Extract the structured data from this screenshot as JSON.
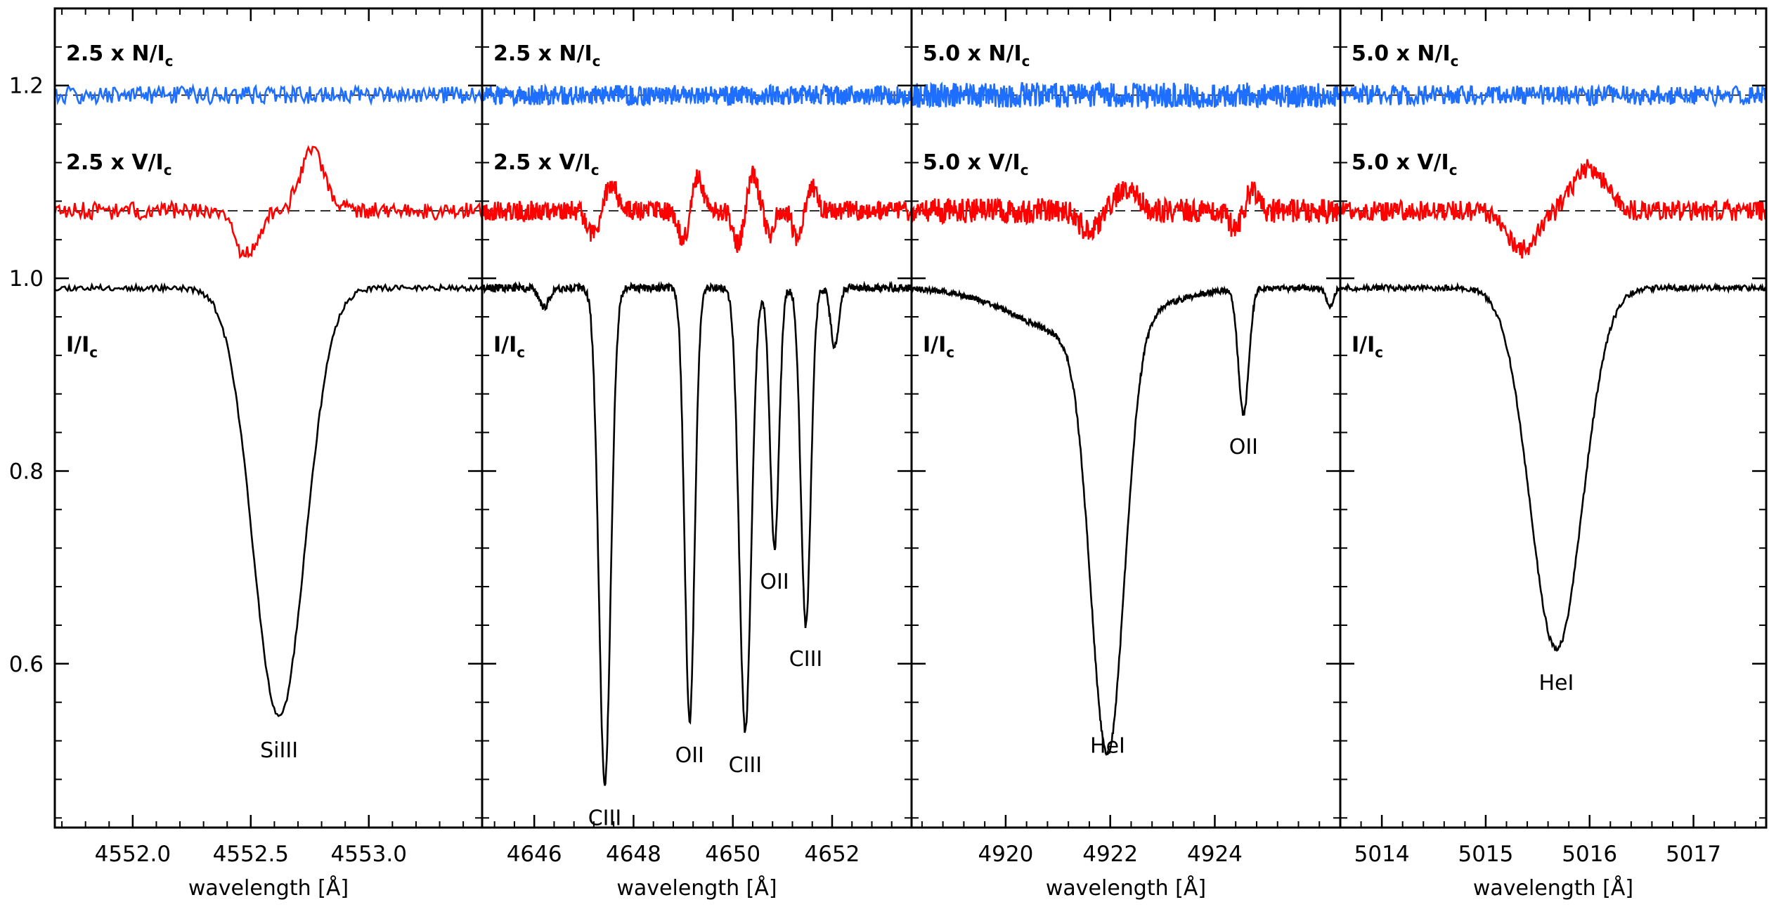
{
  "chart_data": {
    "type": "line",
    "shared_y_axis": {
      "range": [
        0.43,
        1.28
      ],
      "ticks": [
        0.6,
        0.8,
        1.0,
        1.2
      ],
      "tick_labels": [
        "0.6",
        "0.8",
        "1.0",
        "1.2"
      ]
    },
    "colors": {
      "stokes_i": "#000000",
      "stokes_v": "#ff0000",
      "null_n": "#1e6fff",
      "reference": "#000000"
    },
    "offsets": {
      "I": 0.0,
      "V": 1.07,
      "N": 1.19
    },
    "panels": [
      {
        "name": "SiIII 4552",
        "xlim": [
          4551.67,
          4553.48
        ],
        "xticks": [
          4552.0,
          4552.5,
          4553.0
        ],
        "xtick_labels": [
          "4552.0",
          "4552.5",
          "4553.0"
        ],
        "xlabel": "wavelength [Å]",
        "n_label": {
          "prefix": "2.5 x N/I",
          "sub": "c"
        },
        "v_label": {
          "prefix": "2.5 x V/I",
          "sub": "c"
        },
        "i_label": {
          "prefix": "I/I",
          "sub": "c"
        },
        "lines": [
          {
            "label": "SiIII",
            "x": 4552.62,
            "depth": 0.445,
            "width": 0.11
          }
        ],
        "stokes_v": {
          "bumps": [
            {
              "x": 4552.48,
              "amp": -0.045,
              "width": 0.05
            },
            {
              "x": 4552.76,
              "amp": 0.06,
              "width": 0.05
            }
          ],
          "noise": 0.007
        },
        "null_noise": 0.007,
        "noise_i": 0.003,
        "points": 300,
        "seed": 11
      },
      {
        "name": "CIII/OII 4650",
        "xlim": [
          4644.95,
          4653.6
        ],
        "xticks": [
          4646,
          4648,
          4650,
          4652
        ],
        "xtick_labels": [
          "4646",
          "4648",
          "4650",
          "4652"
        ],
        "xlabel": "wavelength [Å]",
        "n_label": {
          "prefix": "2.5 x N/I",
          "sub": "c"
        },
        "v_label": {
          "prefix": "2.5 x V/I",
          "sub": "c"
        },
        "i_label": {
          "prefix": "I/I",
          "sub": "c"
        },
        "lines": [
          {
            "label": "",
            "x": 4646.2,
            "depth": 0.02,
            "width": 0.1
          },
          {
            "label": "CIII",
            "x": 4647.42,
            "depth": 0.515,
            "width": 0.12
          },
          {
            "label": "OII",
            "x": 4649.13,
            "depth": 0.45,
            "width": 0.1
          },
          {
            "label": "CIII",
            "x": 4650.25,
            "depth": 0.46,
            "width": 0.12
          },
          {
            "label": "OII",
            "x": 4650.84,
            "depth": 0.27,
            "width": 0.09
          },
          {
            "label": "CIII",
            "x": 4651.47,
            "depth": 0.35,
            "width": 0.1
          },
          {
            "label": "",
            "x": 4652.05,
            "depth": 0.06,
            "width": 0.08
          }
        ],
        "stokes_v": {
          "bumps": [
            {
              "x": 4647.2,
              "amp": -0.025,
              "width": 0.12
            },
            {
              "x": 4647.55,
              "amp": 0.03,
              "width": 0.12
            },
            {
              "x": 4649.0,
              "amp": -0.03,
              "width": 0.1
            },
            {
              "x": 4649.3,
              "amp": 0.035,
              "width": 0.1
            },
            {
              "x": 4650.1,
              "amp": -0.035,
              "width": 0.1
            },
            {
              "x": 4650.4,
              "amp": 0.04,
              "width": 0.1
            },
            {
              "x": 4650.75,
              "amp": -0.025,
              "width": 0.08
            },
            {
              "x": 4651.3,
              "amp": -0.03,
              "width": 0.09
            },
            {
              "x": 4651.6,
              "amp": 0.025,
              "width": 0.09
            }
          ],
          "noise": 0.008
        },
        "null_noise": 0.008,
        "noise_i": 0.004,
        "points": 700,
        "seed": 23
      },
      {
        "name": "HeI 4922",
        "xlim": [
          4918.2,
          4926.4
        ],
        "xticks": [
          4920,
          4922,
          4924
        ],
        "xtick_labels": [
          "4920",
          "4922",
          "4924"
        ],
        "xlabel": "wavelength [Å]",
        "n_label": {
          "prefix": "5.0 x N/I",
          "sub": "c"
        },
        "v_label": {
          "prefix": "5.0 x V/I",
          "sub": "c"
        },
        "i_label": {
          "prefix": "I/I",
          "sub": "c"
        },
        "lines": [
          {
            "label": "HeI",
            "x": 4921.95,
            "depth": 0.44,
            "width": 0.32
          },
          {
            "label": "OII",
            "x": 4924.55,
            "depth": 0.13,
            "width": 0.1
          },
          {
            "label": "",
            "x": 4926.2,
            "depth": 0.02,
            "width": 0.07
          }
        ],
        "broad_wing": {
          "x": 4921.4,
          "depth": 0.05,
          "width": 1.15
        },
        "stokes_v": {
          "bumps": [
            {
              "x": 4921.6,
              "amp": -0.02,
              "width": 0.2
            },
            {
              "x": 4922.3,
              "amp": 0.025,
              "width": 0.22
            },
            {
              "x": 4924.4,
              "amp": -0.02,
              "width": 0.12
            },
            {
              "x": 4924.7,
              "amp": 0.02,
              "width": 0.12
            }
          ],
          "noise": 0.01
        },
        "null_noise": 0.01,
        "noise_i": 0.003,
        "points": 700,
        "seed": 37
      },
      {
        "name": "HeI 5015",
        "xlim": [
          5013.6,
          5017.7
        ],
        "xticks": [
          5014,
          5015,
          5016,
          5017
        ],
        "xtick_labels": [
          "5014",
          "5015",
          "5016",
          "5017"
        ],
        "xlabel": "wavelength [Å]",
        "n_label": {
          "prefix": "5.0 x N/I",
          "sub": "c"
        },
        "v_label": {
          "prefix": "5.0 x V/I",
          "sub": "c"
        },
        "i_label": {
          "prefix": "I/I",
          "sub": "c"
        },
        "lines": [
          {
            "label": "HeI",
            "x": 5015.68,
            "depth": 0.375,
            "width": 0.25
          }
        ],
        "stokes_v": {
          "bumps": [
            {
              "x": 5015.35,
              "amp": -0.04,
              "width": 0.15
            },
            {
              "x": 5016.0,
              "amp": 0.045,
              "width": 0.15
            }
          ],
          "noise": 0.008
        },
        "null_noise": 0.008,
        "noise_i": 0.003,
        "points": 450,
        "seed": 51
      }
    ]
  }
}
